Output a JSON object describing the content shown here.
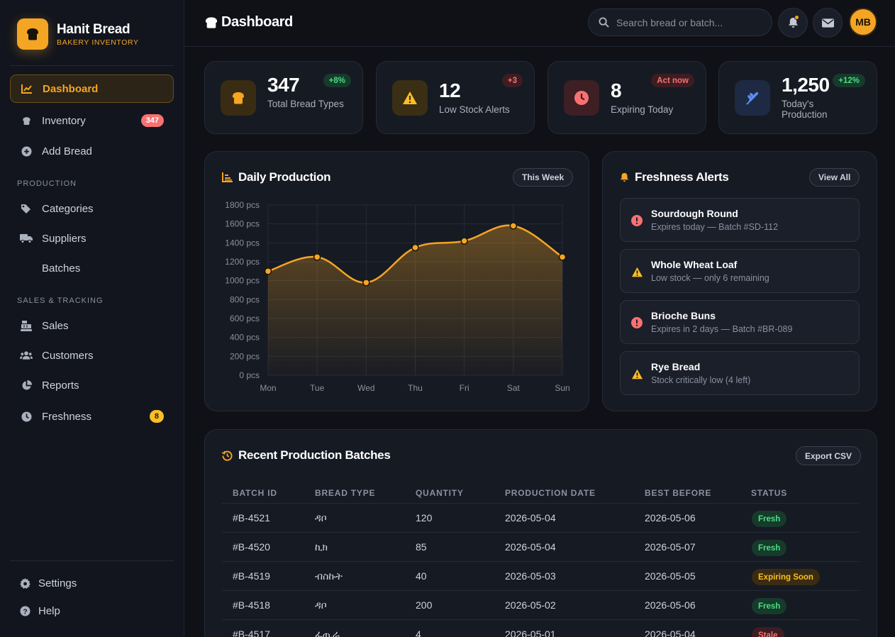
{
  "brand": {
    "name": "Hanit Bread",
    "subtitle": "BAKERY INVENTORY"
  },
  "nav": {
    "dashboard": "Dashboard",
    "inventory": "Inventory",
    "inventory_badge": "347",
    "add_bread": "Add Bread",
    "section_production": "PRODUCTION",
    "categories": "Categories",
    "suppliers": "Suppliers",
    "batches": "Batches",
    "section_sales": "SALES & TRACKING",
    "sales": "Sales",
    "customers": "Customers",
    "reports": "Reports",
    "freshness": "Freshness",
    "freshness_badge": "8",
    "settings": "Settings",
    "help": "Help"
  },
  "header": {
    "title": "Dashboard",
    "search_placeholder": "Search bread or batch...",
    "avatar_initials": "MB"
  },
  "stats": [
    {
      "value": "347",
      "label": "Total Bread Types",
      "chip": "+8%",
      "icon": "bread-icon"
    },
    {
      "value": "12",
      "label": "Low Stock Alerts",
      "chip": "+3",
      "icon": "warning-icon"
    },
    {
      "value": "8",
      "label": "Expiring Today",
      "chip": "Act now",
      "icon": "clock-icon"
    },
    {
      "value": "1,250",
      "label": "Today's Production",
      "chip": "+12%",
      "icon": "wheat-icon"
    }
  ],
  "daily_production": {
    "title": "Daily Production",
    "range_button": "This Week"
  },
  "chart_data": {
    "type": "area",
    "categories": [
      "Mon",
      "Tue",
      "Wed",
      "Thu",
      "Fri",
      "Sat",
      "Sun"
    ],
    "values": [
      1100,
      1250,
      980,
      1350,
      1420,
      1580,
      1250
    ],
    "ylim": [
      0,
      1800
    ],
    "yticks": [
      "0 pcs",
      "200 pcs",
      "400 pcs",
      "600 pcs",
      "800 pcs",
      "1000 pcs",
      "1200 pcs",
      "1400 pcs",
      "1600 pcs",
      "1800 pcs"
    ],
    "grid": true,
    "color": "#f5a524"
  },
  "freshness_alerts": {
    "title": "Freshness Alerts",
    "view_all": "View All",
    "items": [
      {
        "title": "Sourdough Round",
        "sub": "Expires today — Batch #SD-112",
        "level": "danger"
      },
      {
        "title": "Whole Wheat Loaf",
        "sub": "Low stock — only 6 remaining",
        "level": "warning"
      },
      {
        "title": "Brioche Buns",
        "sub": "Expires in 2 days — Batch #BR-089",
        "level": "danger"
      },
      {
        "title": "Rye Bread",
        "sub": "Stock critically low (4 left)",
        "level": "warning"
      }
    ]
  },
  "batches": {
    "title": "Recent Production Batches",
    "export": "Export CSV",
    "columns": [
      "BATCH ID",
      "BREAD TYPE",
      "QUANTITY",
      "PRODUCTION DATE",
      "BEST BEFORE",
      "STATUS"
    ],
    "rows": [
      {
        "id": "#B-4521",
        "type": "ዳቦ",
        "qty": "120",
        "prod": "2026-05-04",
        "best": "2026-05-06",
        "status": "Fresh"
      },
      {
        "id": "#B-4520",
        "type": "ኪክ",
        "qty": "85",
        "prod": "2026-05-04",
        "best": "2026-05-07",
        "status": "Fresh"
      },
      {
        "id": "#B-4519",
        "type": "ብስኩት",
        "qty": "40",
        "prod": "2026-05-03",
        "best": "2026-05-05",
        "status": "Expiring Soon"
      },
      {
        "id": "#B-4518",
        "type": "ዳቦ",
        "qty": "200",
        "prod": "2026-05-02",
        "best": "2026-05-06",
        "status": "Fresh"
      },
      {
        "id": "#B-4517",
        "type": "ፈጢራ",
        "qty": "4",
        "prod": "2026-05-01",
        "best": "2026-05-04",
        "status": "Stale"
      }
    ]
  }
}
